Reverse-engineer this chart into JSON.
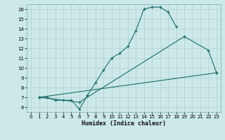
{
  "title": "",
  "xlabel": "Humidex (Indice chaleur)",
  "bg_color": "#cce8e8",
  "grid_color": "#b0d0d0",
  "line_color": "#1a6e6a",
  "xlim": [
    -0.5,
    23.5
  ],
  "ylim": [
    5.5,
    16.5
  ],
  "xticks": [
    0,
    1,
    2,
    3,
    4,
    5,
    6,
    7,
    8,
    9,
    10,
    11,
    12,
    13,
    14,
    15,
    16,
    17,
    18,
    19,
    20,
    21,
    22,
    23
  ],
  "yticks": [
    6,
    7,
    8,
    9,
    10,
    11,
    12,
    13,
    14,
    15,
    16
  ],
  "line1_x": [
    1,
    2,
    3,
    4,
    5,
    6,
    7,
    8,
    9,
    10,
    11,
    12,
    13,
    14,
    15,
    16,
    17,
    18
  ],
  "line1_y": [
    7.0,
    7.0,
    6.7,
    6.7,
    6.7,
    5.8,
    7.2,
    8.5,
    9.8,
    11.0,
    11.5,
    12.2,
    13.8,
    16.0,
    16.2,
    16.2,
    15.7,
    14.2
  ],
  "line2_x": [
    1,
    6,
    19,
    22,
    23
  ],
  "line2_y": [
    7.0,
    6.5,
    13.2,
    11.8,
    9.5
  ],
  "line3_x": [
    1,
    23
  ],
  "line3_y": [
    7.0,
    9.5
  ]
}
